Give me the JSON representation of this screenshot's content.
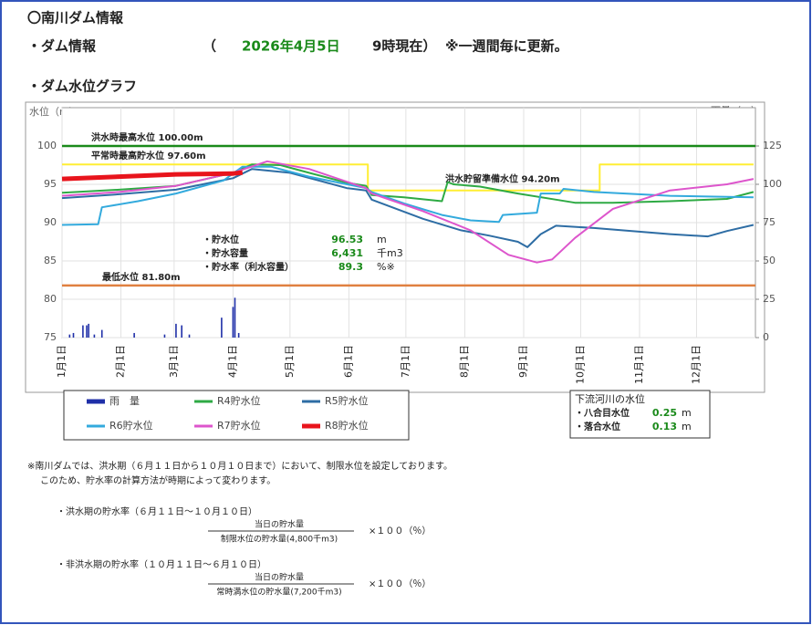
{
  "header": {
    "title": "〇南川ダム情報",
    "section1": "・ダム情報",
    "paren_open": "（",
    "date": "2026年4月5日",
    "time": "9時現在）",
    "update_note": "※一週間毎に更新。",
    "section2": "・ダム水位グラフ"
  },
  "chart_data": {
    "type": "line",
    "ylabel": "水位（m）",
    "y2label": "雨量（㎜）",
    "xlim": [
      0,
      365
    ],
    "ylim": [
      75,
      105
    ],
    "y2lim": [
      0,
      150
    ],
    "xticks": [
      {
        "value": 0,
        "label": "1月1日"
      },
      {
        "value": 31,
        "label": "2月1日"
      },
      {
        "value": 59,
        "label": "3月1日"
      },
      {
        "value": 90,
        "label": "4月1日"
      },
      {
        "value": 120,
        "label": "5月1日"
      },
      {
        "value": 151,
        "label": "6月1日"
      },
      {
        "value": 181,
        "label": "7月1日"
      },
      {
        "value": 212,
        "label": "8月1日"
      },
      {
        "value": 243,
        "label": "9月1日"
      },
      {
        "value": 273,
        "label": "10月1日"
      },
      {
        "value": 304,
        "label": "11月1日"
      },
      {
        "value": 334,
        "label": "12月1日"
      }
    ],
    "yticks": [
      75,
      80,
      85,
      90,
      95,
      100
    ],
    "y2ticks": [
      0,
      25,
      50,
      75,
      100,
      125
    ],
    "grid": true,
    "series": [
      {
        "name": "雨　量",
        "type": "bar",
        "axis": "y2",
        "color": "#1f2fa8",
        "x": [
          4,
          6,
          11,
          13,
          14,
          17,
          21,
          38,
          54,
          60,
          63,
          67,
          84,
          90,
          91,
          93
        ],
        "values": [
          2,
          3,
          8,
          8,
          9,
          2,
          5,
          3,
          2,
          9,
          8,
          2,
          13,
          20,
          26,
          3
        ]
      },
      {
        "name": "R4貯水位",
        "color": "#2eaa44",
        "x": [
          0,
          30,
          60,
          90,
          100,
          115,
          130,
          150,
          160,
          163,
          180,
          200,
          203,
          206,
          220,
          240,
          260,
          270,
          290,
          320,
          350,
          364
        ],
        "values": [
          93.9,
          94.3,
          94.8,
          96.5,
          97.6,
          97.5,
          96.5,
          95.2,
          94.8,
          93.6,
          93.3,
          92.8,
          95.3,
          95.0,
          94.7,
          93.8,
          93.0,
          92.6,
          92.6,
          92.8,
          93.1,
          94.0
        ]
      },
      {
        "name": "R5貯水位",
        "color": "#2e6da4",
        "x": [
          0,
          30,
          60,
          90,
          100,
          120,
          150,
          160,
          163,
          190,
          210,
          225,
          240,
          245,
          252,
          260,
          280,
          300,
          320,
          340,
          350,
          364
        ],
        "values": [
          93.2,
          93.7,
          94.3,
          95.8,
          97.0,
          96.5,
          94.5,
          94.2,
          93.0,
          90.5,
          89.0,
          88.3,
          87.5,
          86.8,
          88.5,
          89.6,
          89.3,
          88.9,
          88.5,
          88.2,
          88.9,
          89.7
        ]
      },
      {
        "name": "R6貯水位",
        "color": "#33aadd",
        "x": [
          0,
          19,
          21,
          40,
          60,
          85,
          95,
          110,
          130,
          150,
          160,
          163,
          180,
          200,
          215,
          230,
          232,
          250,
          252,
          262,
          264,
          280,
          320,
          364
        ],
        "values": [
          89.7,
          89.8,
          92.0,
          92.8,
          93.8,
          95.5,
          97.3,
          97.3,
          96.0,
          95.0,
          94.5,
          94.0,
          92.5,
          91.0,
          90.3,
          90.1,
          91.0,
          91.3,
          93.8,
          93.8,
          94.4,
          94.0,
          93.5,
          93.3
        ]
      },
      {
        "name": "R7貯水位",
        "color": "#dd55cc",
        "x": [
          0,
          30,
          60,
          90,
          108,
          130,
          160,
          163,
          190,
          215,
          235,
          250,
          258,
          270,
          290,
          320,
          350,
          364
        ],
        "values": [
          93.5,
          94.0,
          94.8,
          96.5,
          98.0,
          97.0,
          94.5,
          93.8,
          91.5,
          89.0,
          85.8,
          84.8,
          85.2,
          88.0,
          91.8,
          94.2,
          95.0,
          95.7
        ]
      },
      {
        "name": "R8貯水位",
        "color": "#e8141c",
        "width": 5,
        "x": [
          0,
          30,
          60,
          90,
          95
        ],
        "values": [
          95.7,
          96.0,
          96.3,
          96.4,
          96.53
        ]
      },
      {
        "color": "#ffee33",
        "x": [
          0,
          161,
          161,
          283,
          283,
          364
        ],
        "values": [
          97.6,
          97.6,
          94.2,
          94.2,
          97.6,
          97.6
        ]
      }
    ],
    "reference_lines": [
      {
        "label": "洪水時最高水位 100.00m",
        "value": 100,
        "color": "#1a8a1a"
      },
      {
        "label": "平常時最高貯水位 97.60m",
        "value": 97.6
      },
      {
        "label": "洪水貯留準備水位 94.20m",
        "value": 94.2
      },
      {
        "label": "最低水位 81.80m",
        "value": 81.8,
        "color": "#e08040"
      }
    ]
  },
  "info_box": {
    "rows": [
      {
        "label": "・貯水位",
        "value": 96.53,
        "unit": "m"
      },
      {
        "label": "・貯水容量",
        "value": "6,431",
        "unit": "千m3"
      },
      {
        "label": "・貯水率（利水容量）",
        "value": 89.3,
        "unit": "%※"
      }
    ]
  },
  "river_box": {
    "title": "下流河川の水位",
    "rows": [
      {
        "label": "・八合目水位",
        "value": 0.25,
        "unit": "m"
      },
      {
        "label": "・落合水位",
        "value": 0.13,
        "unit": "m"
      }
    ]
  },
  "notes": {
    "line1": "※南川ダムでは、洪水期（６月１１日から１０月１０日まで）において、制限水位を設定しております。",
    "line2": "このため、貯水率の計算方法が時期によって変わります。",
    "formulas": [
      {
        "title": "・洪水期の貯水率（６月１１日～１０月１０日）",
        "numerator": "当日の貯水量",
        "denominator": "制限水位の貯水量(4,800千m3)",
        "multiplier": "×１００（％）"
      },
      {
        "title": "・非洪水期の貯水率（１０月１１日～６月１０日）",
        "numerator": "当日の貯水量",
        "denominator": "常時満水位の貯水量(7,200千m3)",
        "multiplier": "×１００（％）"
      }
    ]
  }
}
